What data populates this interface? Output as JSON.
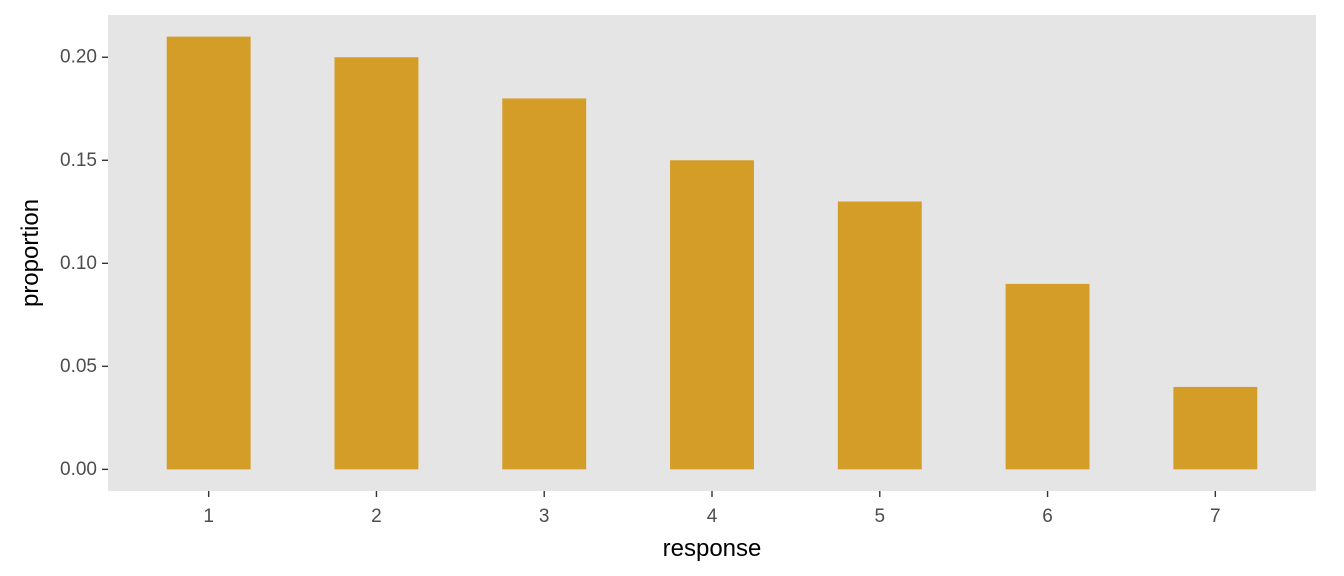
{
  "colors": {
    "panel_background": "#E5E5E5",
    "bar_fill": "#D49D27",
    "tick_mark": "#333333",
    "tick_label": "#4D4D4D",
    "axis_title": "#000000"
  },
  "chart_data": {
    "type": "bar",
    "categories": [
      "1",
      "2",
      "3",
      "4",
      "5",
      "6",
      "7"
    ],
    "values": [
      0.21,
      0.2,
      0.18,
      0.15,
      0.13,
      0.09,
      0.04
    ],
    "xlabel": "response",
    "ylabel": "proportion",
    "ylim": [
      -0.0105,
      0.2205
    ],
    "yticks": [
      0.0,
      0.05,
      0.1,
      0.15,
      0.2
    ],
    "ytick_labels": [
      "0.00",
      "0.05",
      "0.10",
      "0.15",
      "0.20"
    ],
    "grid": false,
    "legend": "none"
  }
}
